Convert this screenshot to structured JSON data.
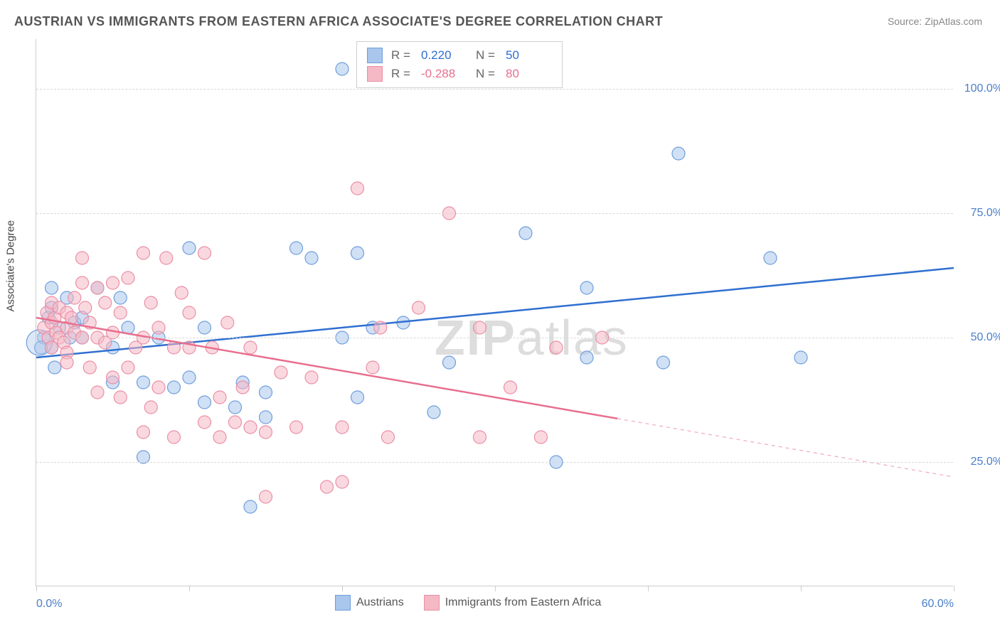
{
  "title": "AUSTRIAN VS IMMIGRANTS FROM EASTERN AFRICA ASSOCIATE'S DEGREE CORRELATION CHART",
  "source": "Source: ZipAtlas.com",
  "watermark": {
    "bold": "ZIP",
    "light": "atlas"
  },
  "y_axis_title": "Associate's Degree",
  "chart": {
    "type": "scatter",
    "xlim": [
      0,
      60
    ],
    "ylim": [
      0,
      110
    ],
    "x_ticks": [
      0,
      10,
      20,
      30,
      40,
      50,
      60
    ],
    "x_tick_labels": [
      "0.0%",
      "",
      "",
      "",
      "",
      "",
      "60.0%"
    ],
    "y_grid": [
      25,
      50,
      75,
      100
    ],
    "y_tick_labels": [
      "25.0%",
      "50.0%",
      "75.0%",
      "100.0%"
    ],
    "background_color": "#ffffff",
    "grid_color": "#d8d8d8",
    "axis_color": "#cccccc",
    "marker_radius": 9,
    "marker_opacity": 0.55,
    "line_width": 2.5,
    "series": [
      {
        "name": "Austrians",
        "color_fill": "#a9c6ec",
        "color_stroke": "#6f9edb",
        "line_color": "#2f6fd0",
        "R": "0.220",
        "N": "50",
        "trend": {
          "x1": 0,
          "y1": 46,
          "x2": 60,
          "y2": 64,
          "dash_from_x": 60
        },
        "points": [
          [
            0.5,
            50
          ],
          [
            0.8,
            54
          ],
          [
            1,
            48
          ],
          [
            1,
            56
          ],
          [
            1,
            60
          ],
          [
            1.2,
            44
          ],
          [
            1.5,
            52
          ],
          [
            2,
            58
          ],
          [
            2.2,
            50
          ],
          [
            2.5,
            53
          ],
          [
            3,
            50
          ],
          [
            3,
            54
          ],
          [
            4,
            60
          ],
          [
            5,
            48
          ],
          [
            5,
            41
          ],
          [
            5.5,
            58
          ],
          [
            6,
            52
          ],
          [
            7,
            26
          ],
          [
            7,
            41
          ],
          [
            8,
            50
          ],
          [
            9,
            40
          ],
          [
            10,
            42
          ],
          [
            10,
            68
          ],
          [
            11,
            37
          ],
          [
            11,
            52
          ],
          [
            13,
            36
          ],
          [
            13.5,
            41
          ],
          [
            14,
            16
          ],
          [
            15,
            34
          ],
          [
            15,
            39
          ],
          [
            17,
            68
          ],
          [
            18,
            66
          ],
          [
            20,
            104
          ],
          [
            20,
            50
          ],
          [
            21,
            38
          ],
          [
            21,
            67
          ],
          [
            22,
            52
          ],
          [
            23,
            105
          ],
          [
            24,
            53
          ],
          [
            26,
            35
          ],
          [
            27,
            45
          ],
          [
            32,
            71
          ],
          [
            34,
            25
          ],
          [
            36,
            46
          ],
          [
            36,
            60
          ],
          [
            41,
            45
          ],
          [
            42,
            87
          ],
          [
            48,
            66
          ],
          [
            50,
            46
          ],
          [
            0.3,
            48
          ]
        ],
        "big_point": {
          "x": 0.2,
          "y": 49,
          "r": 18
        }
      },
      {
        "name": "Immigrants from Eastern Africa",
        "color_fill": "#f5b8c5",
        "color_stroke": "#ea8fa5",
        "line_color": "#e86f8e",
        "R": "-0.288",
        "N": "80",
        "trend": {
          "x1": 0,
          "y1": 54,
          "x2": 60,
          "y2": 22,
          "dash_from_x": 38
        },
        "points": [
          [
            0.5,
            52
          ],
          [
            0.7,
            55
          ],
          [
            0.8,
            50
          ],
          [
            1,
            48
          ],
          [
            1,
            53
          ],
          [
            1,
            57
          ],
          [
            1.2,
            54
          ],
          [
            1.3,
            51
          ],
          [
            1.5,
            56
          ],
          [
            1.5,
            50
          ],
          [
            1.8,
            49
          ],
          [
            2,
            55
          ],
          [
            2,
            52
          ],
          [
            2,
            47
          ],
          [
            2,
            45
          ],
          [
            2.3,
            54
          ],
          [
            2.5,
            51
          ],
          [
            2.5,
            58
          ],
          [
            3,
            50
          ],
          [
            3,
            61
          ],
          [
            3,
            66
          ],
          [
            3.2,
            56
          ],
          [
            3.5,
            53
          ],
          [
            3.5,
            44
          ],
          [
            4,
            60
          ],
          [
            4,
            50
          ],
          [
            4,
            39
          ],
          [
            4.5,
            57
          ],
          [
            4.5,
            49
          ],
          [
            5,
            61
          ],
          [
            5,
            42
          ],
          [
            5,
            51
          ],
          [
            5.5,
            38
          ],
          [
            5.5,
            55
          ],
          [
            6,
            62
          ],
          [
            6,
            44
          ],
          [
            6.5,
            48
          ],
          [
            7,
            50
          ],
          [
            7,
            67
          ],
          [
            7,
            31
          ],
          [
            7.5,
            36
          ],
          [
            7.5,
            57
          ],
          [
            8,
            40
          ],
          [
            8,
            52
          ],
          [
            8.5,
            66
          ],
          [
            9,
            48
          ],
          [
            9,
            30
          ],
          [
            9.5,
            59
          ],
          [
            10,
            48
          ],
          [
            11,
            67
          ],
          [
            11,
            33
          ],
          [
            11.5,
            48
          ],
          [
            12,
            30
          ],
          [
            12,
            38
          ],
          [
            12.5,
            53
          ],
          [
            13,
            33
          ],
          [
            13.5,
            40
          ],
          [
            14,
            48
          ],
          [
            14,
            32
          ],
          [
            15,
            31
          ],
          [
            15,
            18
          ],
          [
            16,
            43
          ],
          [
            17,
            32
          ],
          [
            18,
            42
          ],
          [
            19,
            20
          ],
          [
            20,
            32
          ],
          [
            20,
            21
          ],
          [
            21,
            80
          ],
          [
            22,
            44
          ],
          [
            22.5,
            52
          ],
          [
            23,
            30
          ],
          [
            25,
            56
          ],
          [
            27,
            75
          ],
          [
            29,
            52
          ],
          [
            31,
            40
          ],
          [
            33,
            30
          ],
          [
            34,
            48
          ],
          [
            37,
            50
          ],
          [
            29,
            30
          ],
          [
            10,
            55
          ]
        ]
      }
    ]
  },
  "legend_top": {
    "r_label": "R =",
    "n_label": "N ="
  },
  "legend_bottom": [
    {
      "label": "Austrians",
      "fill": "#a9c6ec",
      "stroke": "#6f9edb"
    },
    {
      "label": "Immigrants from Eastern Africa",
      "fill": "#f5b8c5",
      "stroke": "#ea8fa5"
    }
  ]
}
